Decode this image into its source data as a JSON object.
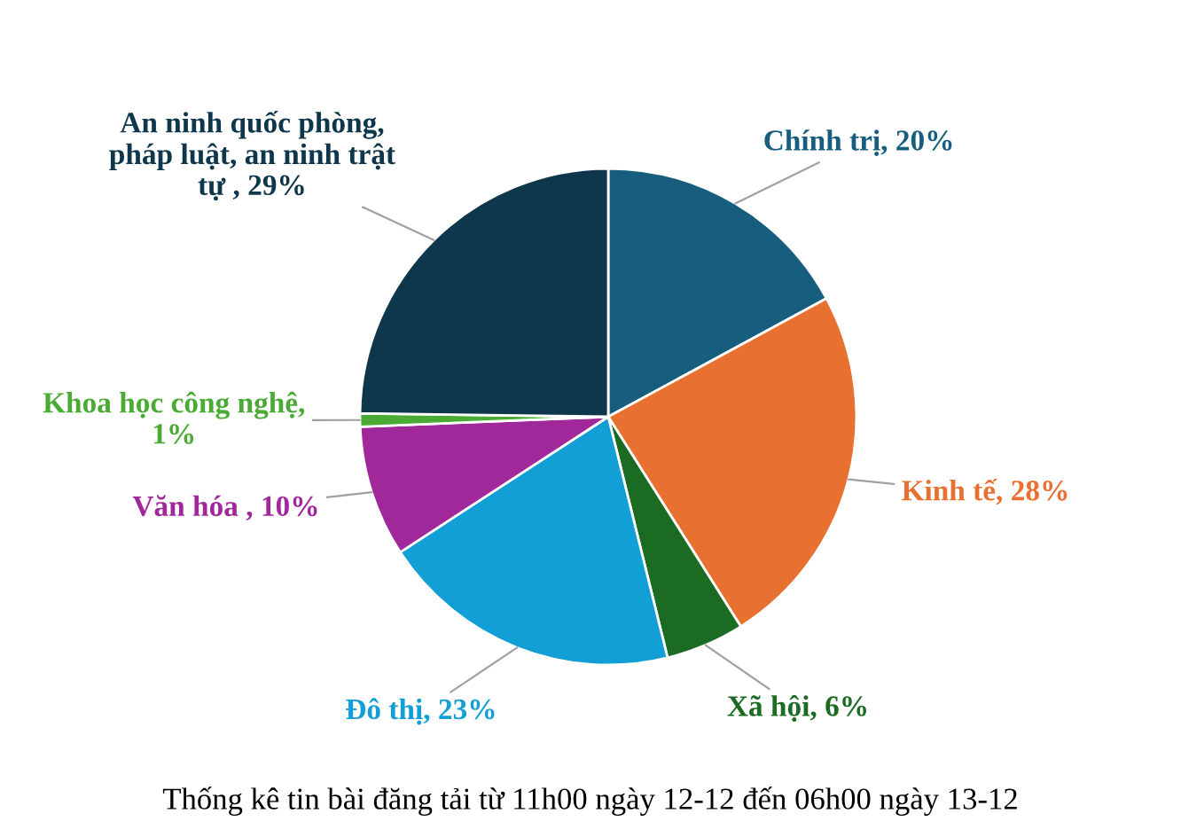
{
  "chart_data": {
    "type": "pie",
    "title": "Thống kê tin bài đăng tải từ 11h00 ngày 12-12 đến 06h00 ngày 13-12",
    "categories": [
      "Chính trị",
      "Kinh tế",
      "Xã hội",
      "Đô thị",
      "Văn hóa",
      "Khoa học công nghệ",
      "An ninh quốc phòng, pháp luật, an ninh trật tự"
    ],
    "values": [
      20,
      28,
      6,
      23,
      10,
      1,
      29
    ],
    "colors": [
      "#175e7e",
      "#e87030",
      "#1c6b22",
      "#129fd6",
      "#a0289a",
      "#4aab34",
      "#0e374b"
    ],
    "value_labels": [
      ", 20%",
      ", 28%",
      ", 6%",
      ", 23%",
      " , 10%",
      ", 1%",
      " , 29%"
    ]
  }
}
